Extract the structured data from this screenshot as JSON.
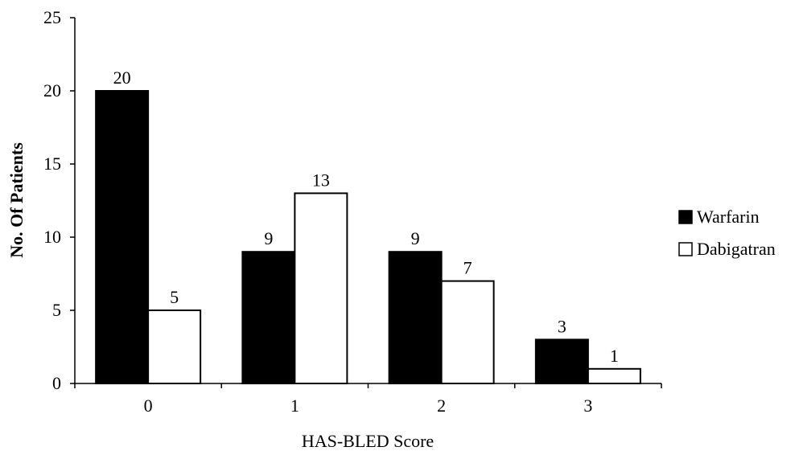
{
  "chart_data": {
    "type": "bar",
    "categories": [
      "0",
      "1",
      "2",
      "3"
    ],
    "series": [
      {
        "name": "Warfarin",
        "values": [
          20,
          9,
          9,
          3
        ],
        "color": "#000000"
      },
      {
        "name": "Dabigatran",
        "values": [
          5,
          13,
          7,
          1
        ],
        "color": "#ffffff"
      }
    ],
    "xlabel": "HAS-BLED Score",
    "ylabel": "No. Of Patients",
    "ylim": [
      0,
      25
    ],
    "yticks": [
      "0",
      "5",
      "10",
      "15",
      "20",
      "25"
    ],
    "legend": "right",
    "grid": false
  }
}
